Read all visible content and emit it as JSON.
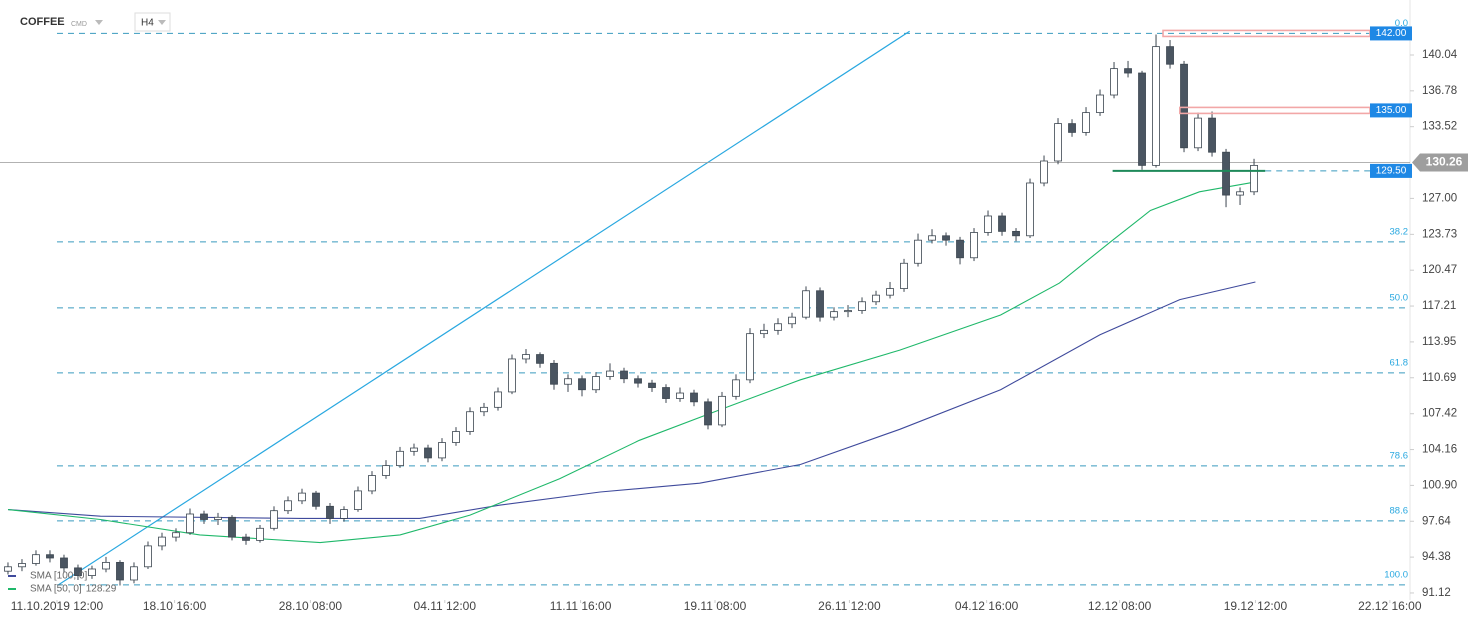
{
  "header": {
    "symbol": "COFFEE",
    "kind": "CMD",
    "interval": "H4"
  },
  "chart_data": {
    "type": "candlestick",
    "up_color": "#ffffff",
    "down_color": "#4a5561",
    "outline_color": "#3c4650",
    "xlim": [
      -0.57,
      100.14
    ],
    "ylim": [
      90.48,
      145.04
    ],
    "xticks": [
      {
        "value": 3.5,
        "label": "11.10.2019 12:00"
      },
      {
        "value": 11.9,
        "label": "18.10 16:00"
      },
      {
        "value": 21.6,
        "label": "28.10 08:00"
      },
      {
        "value": 31.2,
        "label": "04.11 12:00"
      },
      {
        "value": 40.9,
        "label": "11.11 16:00"
      },
      {
        "value": 50.5,
        "label": "19.11 08:00"
      },
      {
        "value": 60.1,
        "label": "26.11 12:00"
      },
      {
        "value": 69.9,
        "label": "04.12 16:00"
      },
      {
        "value": 79.4,
        "label": "12.12 08:00"
      },
      {
        "value": 89.1,
        "label": "19.12 12:00"
      },
      {
        "value": 98.7,
        "label": "22.12 16:00"
      }
    ],
    "yticks": [
      140.04,
      136.78,
      133.52,
      {
        "value": 127,
        "label": "127.00"
      },
      123.73,
      120.47,
      117.21,
      113.95,
      110.69,
      107.42,
      104.16,
      {
        "value": 100.9,
        "label": "100.90"
      },
      97.64,
      94.38,
      91.12
    ],
    "ohlc": [
      [
        93.1,
        93.9,
        92.8,
        93.5
      ],
      [
        93.5,
        94.2,
        93.1,
        93.8
      ],
      [
        93.8,
        95.0,
        93.6,
        94.6
      ],
      [
        94.6,
        95.0,
        93.9,
        94.3
      ],
      [
        94.3,
        94.6,
        93.0,
        93.4
      ],
      [
        93.4,
        93.7,
        92.3,
        92.7
      ],
      [
        92.7,
        93.6,
        92.4,
        93.3
      ],
      [
        93.3,
        94.4,
        93.0,
        93.9
      ],
      [
        93.9,
        94.1,
        91.8,
        92.3
      ],
      [
        92.3,
        93.9,
        92.0,
        93.5
      ],
      [
        93.5,
        95.8,
        93.3,
        95.4
      ],
      [
        95.4,
        96.6,
        95.0,
        96.2
      ],
      [
        96.2,
        97.0,
        95.8,
        96.6
      ],
      [
        96.6,
        98.8,
        96.4,
        98.3
      ],
      [
        98.3,
        98.6,
        97.4,
        97.8
      ],
      [
        97.8,
        98.4,
        97.3,
        98.0
      ],
      [
        98.0,
        98.2,
        95.9,
        96.2
      ],
      [
        96.2,
        96.5,
        95.5,
        95.9
      ],
      [
        95.9,
        97.3,
        95.7,
        97.0
      ],
      [
        97.0,
        99.0,
        96.8,
        98.6
      ],
      [
        98.6,
        99.9,
        98.3,
        99.5
      ],
      [
        99.5,
        100.6,
        99.2,
        100.2
      ],
      [
        100.2,
        100.4,
        98.7,
        99.0
      ],
      [
        99.0,
        99.3,
        97.4,
        97.9
      ],
      [
        97.9,
        99.0,
        97.6,
        98.7
      ],
      [
        98.7,
        100.8,
        98.5,
        100.4
      ],
      [
        100.4,
        102.2,
        100.1,
        101.8
      ],
      [
        101.8,
        103.2,
        101.5,
        102.7
      ],
      [
        102.7,
        104.4,
        102.5,
        104.0
      ],
      [
        104.0,
        104.7,
        103.6,
        104.3
      ],
      [
        104.3,
        104.6,
        103.0,
        103.4
      ],
      [
        103.4,
        105.2,
        103.1,
        104.8
      ],
      [
        104.8,
        106.2,
        104.5,
        105.8
      ],
      [
        105.8,
        108.0,
        105.5,
        107.6
      ],
      [
        107.6,
        108.4,
        107.2,
        108.0
      ],
      [
        108.0,
        109.8,
        107.7,
        109.4
      ],
      [
        109.4,
        112.8,
        109.2,
        112.4
      ],
      [
        112.4,
        113.3,
        112.0,
        112.8
      ],
      [
        112.8,
        113.0,
        111.6,
        112.0
      ],
      [
        112.0,
        112.3,
        109.6,
        110.1
      ],
      [
        110.1,
        111.0,
        109.4,
        110.6
      ],
      [
        110.6,
        110.9,
        109.0,
        109.6
      ],
      [
        109.6,
        111.2,
        109.3,
        110.8
      ],
      [
        110.8,
        112.0,
        110.5,
        111.3
      ],
      [
        111.3,
        111.6,
        110.2,
        110.6
      ],
      [
        110.6,
        110.9,
        109.8,
        110.2
      ],
      [
        110.2,
        110.5,
        109.4,
        109.8
      ],
      [
        109.8,
        110.1,
        108.4,
        108.8
      ],
      [
        108.8,
        109.8,
        108.5,
        109.3
      ],
      [
        109.3,
        109.6,
        108.1,
        108.5
      ],
      [
        108.5,
        108.8,
        106.0,
        106.4
      ],
      [
        106.4,
        109.4,
        106.2,
        109.0
      ],
      [
        109.0,
        111.0,
        108.7,
        110.5
      ],
      [
        110.5,
        115.2,
        110.2,
        114.7
      ],
      [
        114.7,
        115.6,
        114.3,
        115.0
      ],
      [
        115.0,
        116.1,
        114.6,
        115.6
      ],
      [
        115.6,
        116.6,
        115.2,
        116.2
      ],
      [
        116.2,
        119.0,
        116.0,
        118.6
      ],
      [
        118.6,
        118.9,
        115.8,
        116.2
      ],
      [
        116.2,
        117.1,
        115.9,
        116.7
      ],
      [
        116.7,
        117.3,
        116.2,
        116.8
      ],
      [
        116.8,
        118.0,
        116.5,
        117.6
      ],
      [
        117.6,
        118.6,
        117.3,
        118.2
      ],
      [
        118.2,
        119.4,
        117.9,
        118.8
      ],
      [
        118.8,
        121.5,
        118.5,
        121.1
      ],
      [
        121.1,
        123.8,
        120.8,
        123.2
      ],
      [
        123.2,
        124.2,
        122.9,
        123.6
      ],
      [
        123.6,
        123.9,
        122.7,
        123.2
      ],
      [
        123.2,
        123.5,
        121.0,
        121.6
      ],
      [
        121.6,
        124.3,
        121.3,
        123.9
      ],
      [
        123.9,
        125.9,
        123.6,
        125.4
      ],
      [
        125.4,
        125.7,
        123.6,
        124.0
      ],
      [
        124.0,
        124.3,
        123.1,
        123.6
      ],
      [
        123.6,
        128.8,
        123.4,
        128.4
      ],
      [
        128.4,
        130.9,
        128.1,
        130.4
      ],
      [
        130.4,
        134.3,
        130.1,
        133.8
      ],
      [
        133.8,
        134.2,
        132.6,
        133.0
      ],
      [
        133.0,
        135.3,
        132.7,
        134.8
      ],
      [
        134.8,
        136.9,
        134.5,
        136.4
      ],
      [
        136.4,
        139.4,
        136.1,
        138.8
      ],
      [
        138.8,
        139.5,
        138.0,
        138.4
      ],
      [
        138.4,
        138.6,
        129.6,
        130.0
      ],
      [
        130.0,
        141.9,
        129.8,
        140.8
      ],
      [
        140.8,
        141.4,
        138.8,
        139.2
      ],
      [
        139.2,
        139.5,
        131.2,
        131.6
      ],
      [
        131.6,
        134.8,
        131.3,
        134.3
      ],
      [
        134.3,
        134.9,
        130.8,
        131.2
      ],
      [
        131.2,
        131.5,
        126.2,
        127.3
      ],
      [
        127.3,
        128.0,
        126.4,
        127.6
      ],
      [
        127.6,
        130.6,
        127.3,
        130.0
      ]
    ],
    "series": [
      {
        "name": "SMA [100, 0]",
        "color": "#3f4a9c",
        "x": [
          0,
          6.6,
          20.9,
          29.4,
          35.1,
          42.3,
          49.4,
          56.6,
          63.7,
          70.9,
          78,
          83.7,
          89.1
        ],
        "values": [
          98.7,
          98.1,
          97.9,
          97.9,
          99.1,
          100.3,
          101.1,
          102.8,
          106.0,
          109.6,
          114.6,
          117.8,
          119.4
        ]
      },
      {
        "name": "SMA [50, 0]",
        "color": "#1fb86a",
        "legend_value": "128.29",
        "x": [
          0,
          6.6,
          13.7,
          22.3,
          28,
          33,
          39.4,
          45.1,
          50.9,
          56.6,
          63.7,
          70.9,
          75.1,
          78.7,
          81.6,
          85.1,
          89.1
        ],
        "values": [
          98.7,
          97.8,
          96.4,
          95.7,
          96.4,
          98.2,
          101.5,
          105.0,
          107.8,
          110.5,
          113.2,
          116.4,
          119.3,
          123.0,
          125.9,
          127.6,
          128.5
        ]
      }
    ],
    "trend_line": {
      "color": "#29a8e0",
      "x": [
        3.6,
        64.4
      ],
      "values": [
        91.86,
        142.2
      ]
    },
    "fib_levels": [
      {
        "label": "0.0",
        "value": 142.0
      },
      {
        "label": "38.2",
        "value": 123.04
      },
      {
        "label": "50.0",
        "value": 117.04
      },
      {
        "label": "61.8",
        "value": 111.13
      },
      {
        "label": "78.6",
        "value": 102.68
      },
      {
        "label": "88.6",
        "value": 97.68
      },
      {
        "label": "100.0",
        "value": 91.86
      }
    ],
    "fib_start": 3.5,
    "levels": [
      {
        "value": 142,
        "label": "142.00",
        "start": 82.5,
        "color": "#f2a7a7"
      },
      {
        "value": 135,
        "label": "135.00",
        "start": 83.7,
        "color": "#f2a7a7"
      },
      {
        "value": 129.5,
        "label": "129.50",
        "start": 78.9,
        "end": 89.8,
        "color": "#1e8a5a"
      }
    ],
    "last_price": 130.26
  }
}
